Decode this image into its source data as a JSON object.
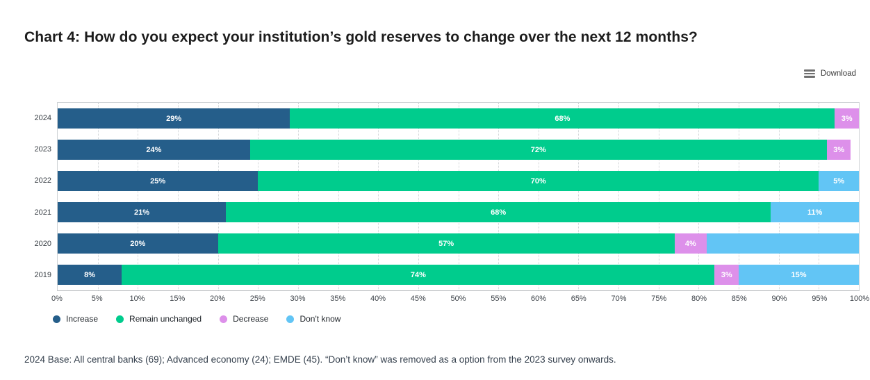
{
  "title": "Chart 4: How do you expect your institution’s gold reserves to change over the next 12 months?",
  "toolbar": {
    "download_label": "Download"
  },
  "chart_data": {
    "type": "bar",
    "orientation": "horizontal",
    "stacked": true,
    "title": "Chart 4: How do you expect your institution’s gold reserves to change over the next 12 months?",
    "categories": [
      "2024",
      "2023",
      "2022",
      "2021",
      "2020",
      "2019"
    ],
    "series": [
      {
        "name": "Increase",
        "color": "#255e8a",
        "values": [
          29,
          24,
          25,
          21,
          20,
          8
        ]
      },
      {
        "name": "Remain unchanged",
        "color": "#00cc8d",
        "values": [
          68,
          72,
          70,
          68,
          57,
          74
        ]
      },
      {
        "name": "Decrease",
        "color": "#dd90ea",
        "values": [
          3,
          3,
          0,
          0,
          4,
          3
        ]
      },
      {
        "name": "Don't know",
        "color": "#62c5f5",
        "values": [
          0,
          0,
          5,
          11,
          19,
          15
        ]
      }
    ],
    "value_labels": [
      [
        "29%",
        "68%",
        "3%",
        ""
      ],
      [
        "24%",
        "72%",
        "3%",
        ""
      ],
      [
        "25%",
        "70%",
        "",
        "5%"
      ],
      [
        "21%",
        "68%",
        "",
        "11%"
      ],
      [
        "20%",
        "57%",
        "4%",
        ""
      ],
      [
        "8%",
        "74%",
        "3%",
        "15%"
      ]
    ],
    "xlabel": "",
    "ylabel": "",
    "xlim": [
      0,
      100
    ],
    "x_ticks": [
      "0%",
      "5%",
      "10%",
      "15%",
      "20%",
      "25%",
      "30%",
      "35%",
      "40%",
      "45%",
      "50%",
      "55%",
      "60%",
      "65%",
      "70%",
      "75%",
      "80%",
      "85%",
      "90%",
      "95%",
      "100%"
    ],
    "grid": "vertical-dotted",
    "legend_position": "bottom"
  },
  "footnote": "2024 Base: All central banks (69); Advanced economy (24); EMDE (45). “Don’t know” was removed as a option from the 2023 survey onwards."
}
